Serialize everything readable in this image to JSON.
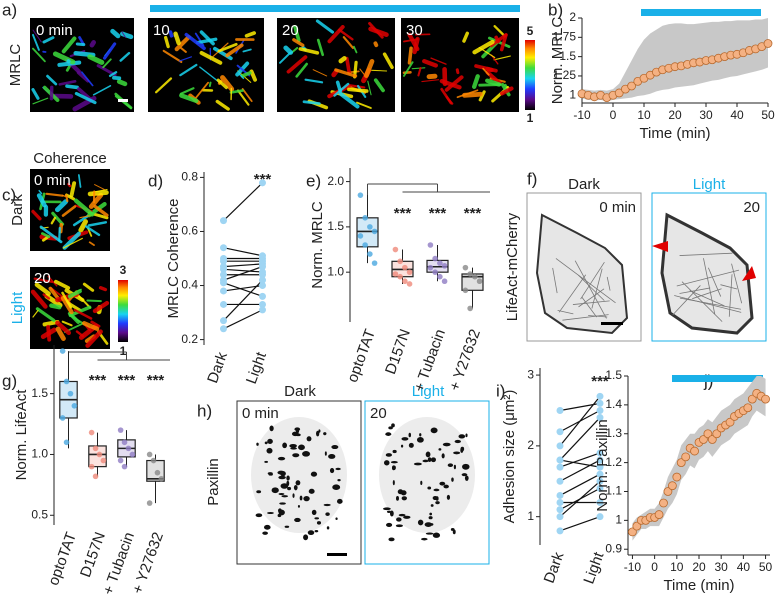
{
  "panel_labels": [
    "a)",
    "b)",
    "c)",
    "d)",
    "e)",
    "f)",
    "g)",
    "h)",
    "i)",
    "j)"
  ],
  "images": {
    "a": {
      "channel": "MRLC",
      "frames": [
        "0 min",
        "10",
        "20",
        "30"
      ],
      "scale": [
        5,
        1
      ]
    },
    "c": {
      "title": "Coherence",
      "frames": [
        "0 min",
        "20"
      ],
      "conditions": [
        "Dark",
        "Light"
      ],
      "scale": [
        3,
        1
      ]
    },
    "f": {
      "channel": "LifeAct-mCherry",
      "conditions": [
        "Dark",
        "Light"
      ],
      "frames": [
        "0 min",
        "20"
      ]
    },
    "h": {
      "channel": "Paxillin",
      "conditions": [
        "Dark",
        "Light"
      ],
      "frames": [
        "0 min",
        "20"
      ]
    }
  },
  "chart_data": [
    {
      "type": "line",
      "ylabel": "Norm. MRLC",
      "xlabel": "Time (min)",
      "x": [
        -10,
        -8,
        -6,
        -4,
        -2,
        0,
        2,
        4,
        6,
        8,
        10,
        12,
        14,
        16,
        18,
        20,
        22,
        24,
        26,
        28,
        30,
        32,
        34,
        36,
        38,
        40,
        42,
        44,
        46,
        48,
        50
      ],
      "series": [
        {
          "color": "#f4b183",
          "band_color": "#c8c8c8",
          "values": [
            1.02,
            1.0,
            0.98,
            1.0,
            0.97,
            1.0,
            1.03,
            1.08,
            1.12,
            1.18,
            1.22,
            1.26,
            1.3,
            1.33,
            1.35,
            1.37,
            1.38,
            1.4,
            1.42,
            1.43,
            1.45,
            1.46,
            1.48,
            1.5,
            1.52,
            1.53,
            1.55,
            1.58,
            1.6,
            1.63,
            1.67
          ],
          "upper": [
            1.08,
            1.07,
            1.06,
            1.07,
            1.06,
            1.08,
            1.15,
            1.3,
            1.45,
            1.6,
            1.72,
            1.8,
            1.85,
            1.9,
            1.92,
            1.93,
            1.93,
            1.92,
            1.92,
            1.93,
            1.94,
            1.95,
            1.95,
            1.96,
            1.96,
            1.97,
            1.97,
            1.97,
            1.98,
            1.98,
            2.0
          ],
          "lower": [
            0.96,
            0.94,
            0.93,
            0.94,
            0.92,
            0.94,
            0.95,
            0.96,
            0.97,
            0.99,
            1.0,
            1.02,
            1.05,
            1.07,
            1.08,
            1.1,
            1.11,
            1.12,
            1.13,
            1.15,
            1.17,
            1.19,
            1.2,
            1.22,
            1.24,
            1.25,
            1.27,
            1.29,
            1.31,
            1.33,
            1.36
          ]
        }
      ],
      "xlim": [
        -10,
        50
      ],
      "ylim": [
        0.9,
        2.0
      ],
      "xticks": [
        -10,
        0,
        10,
        20,
        30,
        40,
        50
      ],
      "yticks": [
        1,
        1.25,
        1.5,
        1.75,
        2
      ]
    },
    {
      "type": "paired",
      "ylabel": "MRLC Coherence",
      "categories": [
        "Dark",
        "Light"
      ],
      "color": "#9fd5f3",
      "values": [
        [
          0.64,
          0.54,
          0.5,
          0.49,
          0.47,
          0.46,
          0.44,
          0.42,
          0.41,
          0.38,
          0.33,
          0.27,
          0.24
        ],
        [
          0.78,
          0.51,
          0.5,
          0.49,
          0.48,
          0.45,
          0.44,
          0.47,
          0.36,
          0.4,
          0.33,
          0.42,
          0.31
        ]
      ],
      "annotations": [
        "***"
      ],
      "ylim": [
        0.18,
        0.82
      ],
      "yticks": [
        0.2,
        0.4,
        0.6,
        0.8
      ]
    },
    {
      "type": "box",
      "ylabel": "Norm. MRLC",
      "categories": [
        "optoTAT",
        "D157N",
        "+ Tubacin",
        "+ Y27632"
      ],
      "boxes": [
        {
          "color": "#4aa8e0",
          "whislo": 1.1,
          "q1": 1.28,
          "med": 1.45,
          "q3": 1.6,
          "whishi": 1.85,
          "points": [
            1.85,
            1.6,
            1.5,
            1.45,
            1.4,
            1.3,
            1.2,
            1.1
          ]
        },
        {
          "color": "#ef8a7a",
          "whislo": 0.87,
          "q1": 0.95,
          "med": 1.03,
          "q3": 1.12,
          "whishi": 1.25,
          "points": [
            1.25,
            1.12,
            1.05,
            1.0,
            0.98,
            0.95,
            0.9,
            0.87
          ]
        },
        {
          "color": "#8e7cc3",
          "whislo": 0.9,
          "q1": 1.0,
          "med": 1.06,
          "q3": 1.13,
          "whishi": 1.3,
          "points": [
            1.3,
            1.15,
            1.1,
            1.07,
            1.05,
            1.0,
            0.95,
            0.9
          ]
        },
        {
          "color": "#888888",
          "whislo": 0.6,
          "q1": 0.8,
          "med": 0.95,
          "q3": 0.98,
          "whishi": 1.05,
          "points": [
            1.05,
            0.98,
            0.95,
            0.9,
            0.8,
            0.6
          ]
        }
      ],
      "annotations": [
        "***",
        "***",
        "***"
      ],
      "ylim": [
        0.45,
        2.15
      ],
      "yticks": [
        {
          "value": 1,
          "label": "1.0"
        },
        1.5,
        {
          "value": 2,
          "label": "2.0"
        }
      ]
    },
    {
      "type": "box",
      "ylabel": "Norm. LifeAct",
      "categories": [
        "optoTAT",
        "D157N",
        "+ Tubacin",
        "+ Y27632"
      ],
      "boxes": [
        {
          "color": "#4aa8e0",
          "whislo": 1.05,
          "q1": 1.3,
          "med": 1.45,
          "q3": 1.6,
          "whishi": 1.85,
          "points": [
            1.85,
            1.6,
            1.5,
            1.4,
            1.3,
            1.1
          ]
        },
        {
          "color": "#ef8a7a",
          "whislo": 0.82,
          "q1": 0.9,
          "med": 1.0,
          "q3": 1.07,
          "whishi": 1.18,
          "points": [
            1.18,
            1.05,
            1.0,
            0.95,
            0.9,
            0.82
          ]
        },
        {
          "color": "#8e7cc3",
          "whislo": 0.9,
          "q1": 0.98,
          "med": 1.05,
          "q3": 1.12,
          "whishi": 1.2,
          "points": [
            1.2,
            1.1,
            1.05,
            1.0,
            0.95,
            0.9
          ]
        },
        {
          "color": "#888888",
          "whislo": 0.6,
          "q1": 0.78,
          "med": 0.8,
          "q3": 0.95,
          "whishi": 1.0,
          "points": [
            1.0,
            0.95,
            0.85,
            0.8,
            0.6
          ]
        }
      ],
      "annotations": [
        "***",
        "***",
        "***"
      ],
      "ylim": [
        0.42,
        1.9
      ],
      "yticks": [
        0.5,
        {
          "value": 1,
          "label": "1.0"
        },
        1.5
      ]
    },
    {
      "type": "paired",
      "ylabel": "Adhesion size (μm²)",
      "categories": [
        "Dark",
        "Light"
      ],
      "color": "#9fd5f3",
      "values": [
        [
          0.8,
          1.0,
          1.1,
          1.2,
          1.3,
          1.5,
          1.7,
          1.8,
          1.8,
          2.0,
          2.2,
          2.5
        ],
        [
          1.0,
          1.5,
          1.4,
          1.2,
          1.6,
          1.8,
          1.9,
          1.7,
          2.4,
          2.7,
          2.5,
          2.6
        ]
      ],
      "annotations": [
        "***"
      ],
      "ylim": [
        0.6,
        3.1
      ],
      "yticks": [
        1,
        2,
        3
      ]
    },
    {
      "type": "line",
      "ylabel": "Norm. Paxillin",
      "xlabel": "Time (min)",
      "x": [
        -10,
        -8,
        -6,
        -4,
        -2,
        0,
        2,
        4,
        6,
        8,
        10,
        12,
        14,
        16,
        18,
        20,
        22,
        24,
        26,
        28,
        30,
        32,
        34,
        36,
        38,
        40,
        42,
        44,
        46,
        48,
        50
      ],
      "series": [
        {
          "color": "#f4b183",
          "band_color": "#c8c8c8",
          "values": [
            0.96,
            0.98,
            1.0,
            1.0,
            1.01,
            1.01,
            1.02,
            1.06,
            1.1,
            1.12,
            1.15,
            1.2,
            1.22,
            1.25,
            1.24,
            1.27,
            1.28,
            1.3,
            1.28,
            1.3,
            1.32,
            1.33,
            1.34,
            1.36,
            1.37,
            1.38,
            1.39,
            1.42,
            1.44,
            1.43,
            1.42
          ],
          "upper": [
            0.99,
            1.01,
            1.02,
            1.03,
            1.04,
            1.04,
            1.06,
            1.1,
            1.15,
            1.18,
            1.21,
            1.26,
            1.28,
            1.3,
            1.3,
            1.32,
            1.33,
            1.35,
            1.34,
            1.36,
            1.38,
            1.39,
            1.4,
            1.42,
            1.43,
            1.44,
            1.46,
            1.48,
            1.5,
            1.5,
            1.49
          ],
          "lower": [
            0.93,
            0.95,
            0.97,
            0.97,
            0.98,
            0.98,
            0.98,
            1.01,
            1.04,
            1.06,
            1.09,
            1.14,
            1.16,
            1.19,
            1.18,
            1.21,
            1.22,
            1.24,
            1.22,
            1.24,
            1.26,
            1.27,
            1.28,
            1.3,
            1.31,
            1.32,
            1.33,
            1.36,
            1.38,
            1.37,
            1.36
          ]
        }
      ],
      "xlim": [
        -12,
        52
      ],
      "ylim": [
        0.88,
        1.5
      ],
      "xticks": [
        -10,
        0,
        10,
        20,
        30,
        40,
        50
      ],
      "yticks": [
        0.9,
        1,
        1.1,
        1.2,
        1.3,
        1.4,
        1.5
      ]
    }
  ]
}
